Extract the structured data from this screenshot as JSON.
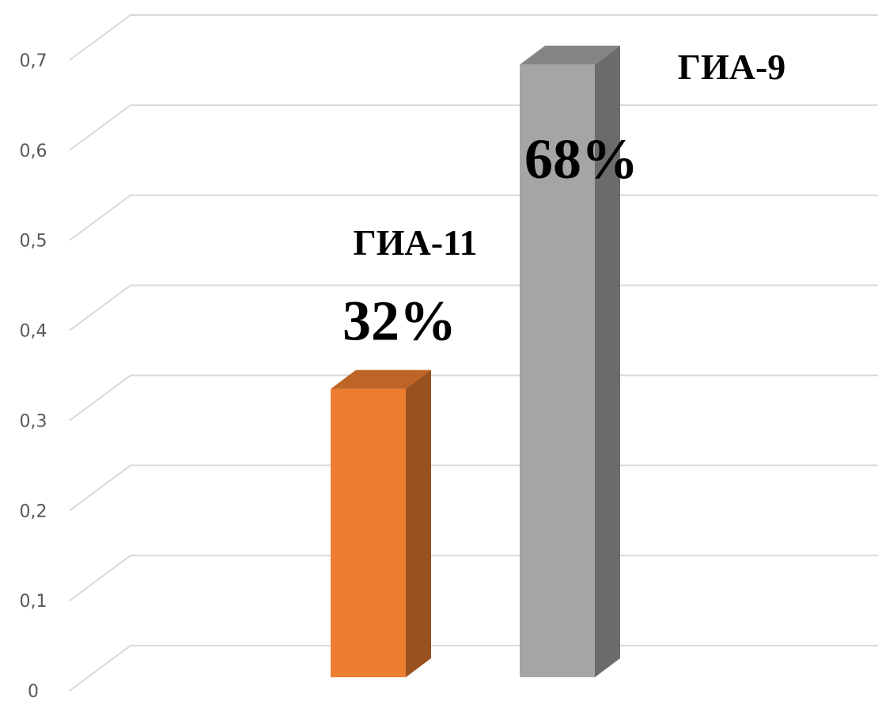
{
  "chart_data": {
    "type": "bar3d",
    "categories": [
      "ГИА-11",
      "ГИА-9"
    ],
    "values": [
      0.32,
      0.68
    ],
    "value_labels": [
      "32%",
      "68%"
    ],
    "colors": [
      "#ed7d31",
      "#a5a5a5"
    ],
    "ylim": [
      0,
      0.7
    ],
    "yticks": [
      {
        "value": 0,
        "label": "0"
      },
      {
        "value": 0.1,
        "label": "0,1"
      },
      {
        "value": 0.2,
        "label": "0,2"
      },
      {
        "value": 0.3,
        "label": "0,3"
      },
      {
        "value": 0.4,
        "label": "0,4"
      },
      {
        "value": 0.5,
        "label": "0,5"
      },
      {
        "value": 0.6,
        "label": "0,6"
      },
      {
        "value": 0.7,
        "label": "0,7"
      }
    ],
    "grid": true
  }
}
